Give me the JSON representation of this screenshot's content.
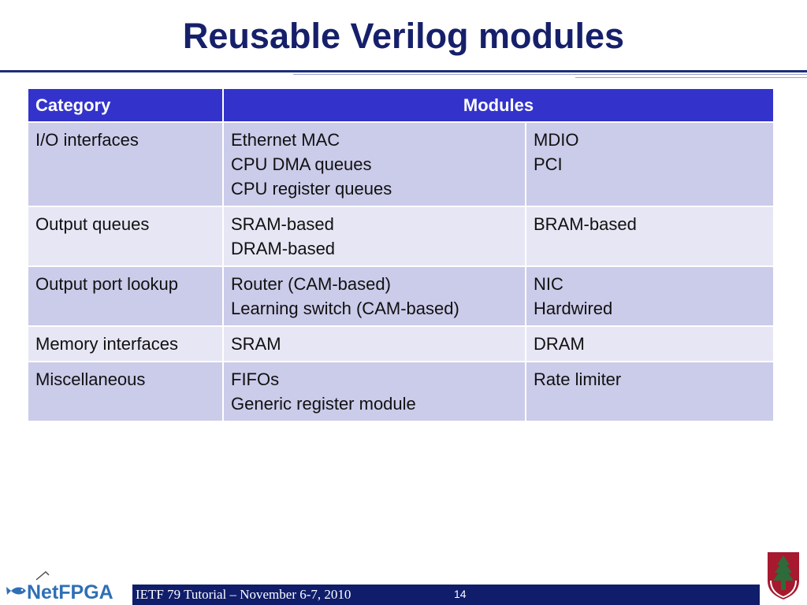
{
  "slide": {
    "title": "Reusable Verilog modules"
  },
  "table": {
    "headers": [
      "Category",
      "Modules"
    ],
    "rows": [
      {
        "category": "I/O interfaces",
        "col1": [
          "Ethernet MAC",
          "CPU DMA queues",
          "CPU register queues"
        ],
        "col2": [
          "MDIO",
          "PCI"
        ]
      },
      {
        "category": "Output queues",
        "col1": [
          "SRAM-based",
          "DRAM-based"
        ],
        "col2": [
          "BRAM-based"
        ]
      },
      {
        "category": "Output port lookup",
        "col1": [
          "Router (CAM-based)",
          "Learning switch (CAM-based)"
        ],
        "col2": [
          "NIC",
          "Hardwired"
        ]
      },
      {
        "category": "Memory interfaces",
        "col1": [
          "SRAM"
        ],
        "col2": [
          "DRAM"
        ]
      },
      {
        "category": "Miscellaneous",
        "col1": [
          "FIFOs",
          "Generic register module"
        ],
        "col2": [
          "Rate limiter"
        ]
      }
    ]
  },
  "footer": {
    "text": "IETF 79 Tutorial – November 6-7, 2010",
    "page_number": "14",
    "logo_left_text": "NetFPGA",
    "logo_left_icon": "netfpga-logo",
    "logo_right_icon": "stanford-tree-logo"
  },
  "colors": {
    "title": "#16206a",
    "header_bg": "#3333cc",
    "row_odd": "#cbcbea",
    "row_even": "#e6e6f4",
    "footer_bar": "#0f1d6b",
    "stanford_red": "#a6192e"
  }
}
